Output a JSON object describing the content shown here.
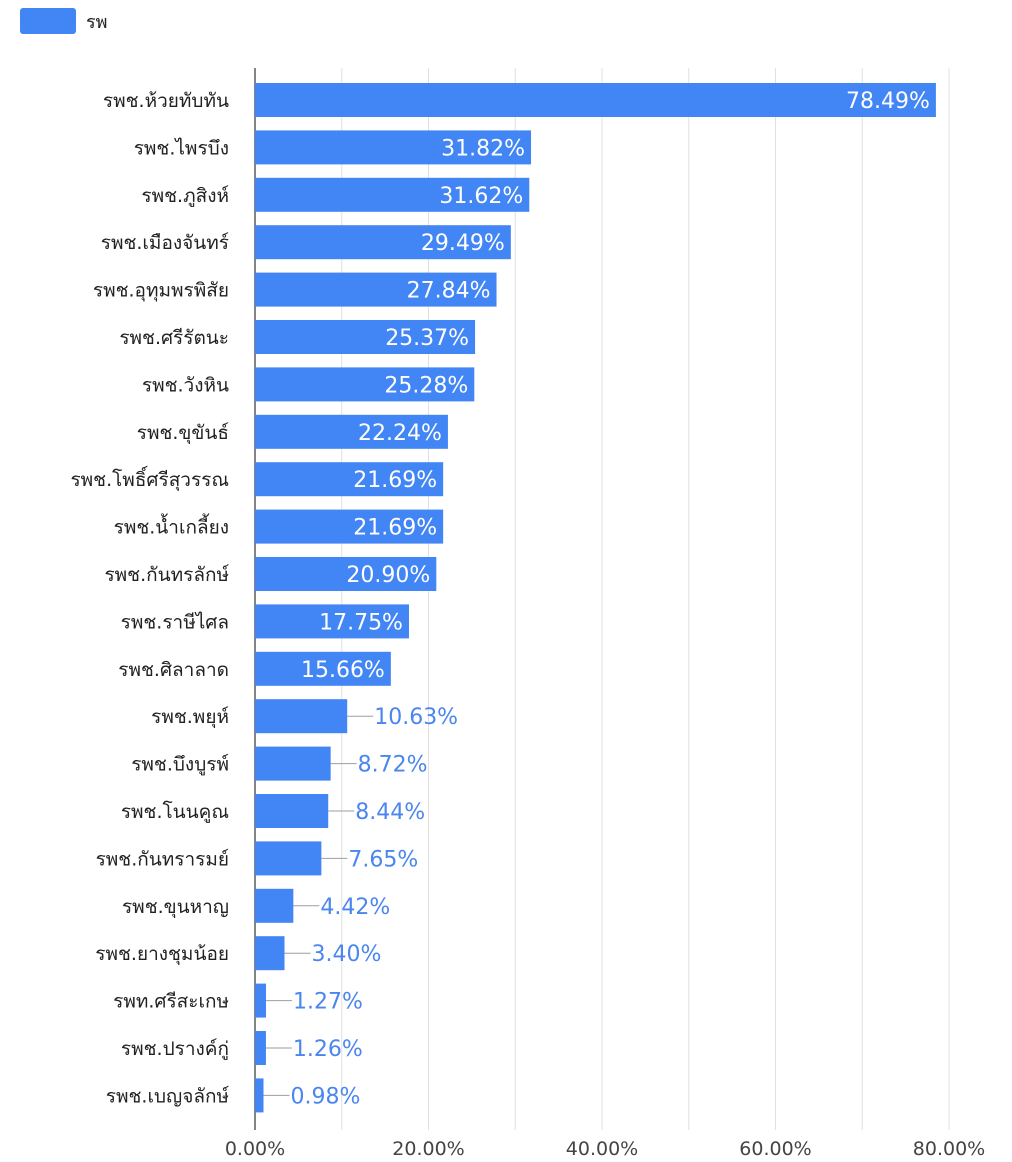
{
  "chart_data": {
    "type": "bar",
    "orientation": "horizontal",
    "legend": {
      "position": "top-left",
      "entries": [
        "รพ"
      ]
    },
    "series": [
      {
        "name": "รพ",
        "color": "#4285f4",
        "values": [
          78.49,
          31.82,
          31.62,
          29.49,
          27.84,
          25.37,
          25.28,
          22.24,
          21.69,
          21.69,
          20.9,
          17.75,
          15.66,
          10.63,
          8.72,
          8.44,
          7.65,
          4.42,
          3.4,
          1.27,
          1.26,
          0.98
        ],
        "labels": [
          "78.49%",
          "31.82%",
          "31.62%",
          "29.49%",
          "27.84%",
          "25.37%",
          "25.28%",
          "22.24%",
          "21.69%",
          "21.69%",
          "20.90%",
          "17.75%",
          "15.66%",
          "10.63%",
          "8.72%",
          "8.44%",
          "7.65%",
          "4.42%",
          "3.40%",
          "1.27%",
          "1.26%",
          "0.98%"
        ]
      }
    ],
    "categories": [
      "รพช.ห้วยทับทัน",
      "รพช.ไพรบึง",
      "รพช.ภูสิงห์",
      "รพช.เมืองจันทร์",
      "รพช.อุทุมพรพิสัย",
      "รพช.ศรีรัตนะ",
      "รพช.วังหิน",
      "รพช.ขุขันธ์",
      "รพช.โพธิ์ศรีสุวรรณ",
      "รพช.น้ำเกลี้ยง",
      "รพช.กันทรลักษ์",
      "รพช.ราษีไศล",
      "รพช.ศิลาลาด",
      "รพช.พยุห์",
      "รพช.บึงบูรพ์",
      "รพช.โนนคูณ",
      "รพช.กันทรารมย์",
      "รพช.ขุนหาญ",
      "รพช.ยางชุมน้อย",
      "รพท.ศรีสะเกษ",
      "รพช.ปรางค์กู่",
      "รพช.เบญจลักษ์"
    ],
    "x_axis": {
      "min": 0,
      "max": 80,
      "ticks": [
        0,
        20,
        40,
        60,
        80
      ],
      "tick_labels": [
        "0.00%",
        "20.00%",
        "40.00%",
        "60.00%",
        "80.00%"
      ]
    },
    "grid": true,
    "title": "",
    "xlabel": "",
    "ylabel": ""
  }
}
